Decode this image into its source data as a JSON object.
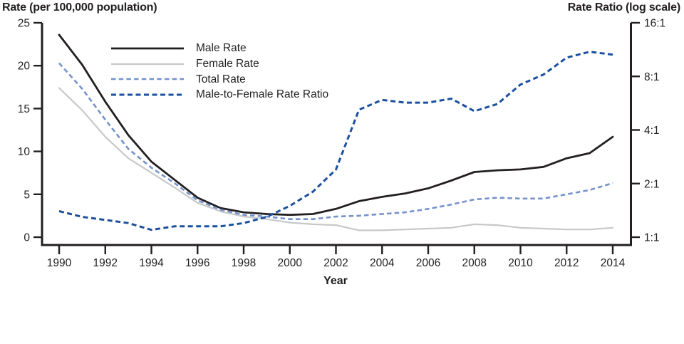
{
  "figure": {
    "background": "#ffffff",
    "text_color": "#231f20"
  },
  "chart_data": {
    "type": "line",
    "title": "",
    "xlabel": "Year",
    "grid": false,
    "legend_position": "top-left-inside",
    "x": [
      1990,
      1991,
      1992,
      1993,
      1994,
      1995,
      1996,
      1997,
      1998,
      1999,
      2000,
      2001,
      2002,
      2003,
      2004,
      2005,
      2006,
      2007,
      2008,
      2009,
      2010,
      2011,
      2012,
      2013,
      2014
    ],
    "x_tick_labels": [
      "1990",
      "1992",
      "1994",
      "1996",
      "1998",
      "2000",
      "2002",
      "2004",
      "2006",
      "2008",
      "2010",
      "2012",
      "2014"
    ],
    "x_tick_values": [
      1990,
      1992,
      1994,
      1996,
      1998,
      2000,
      2002,
      2004,
      2006,
      2008,
      2010,
      2012,
      2014
    ],
    "left_axis": {
      "title": "Rate (per 100,000 population)",
      "range": [
        0,
        25
      ],
      "tick_values": [
        0,
        5,
        10,
        15,
        20,
        25
      ],
      "tick_labels": [
        "0",
        "5",
        "10",
        "15",
        "20",
        "25"
      ]
    },
    "right_axis": {
      "title": "Rate Ratio (log scale)",
      "scale": "log2",
      "range": [
        1,
        16
      ],
      "tick_values": [
        1,
        2,
        4,
        8,
        16
      ],
      "tick_labels": [
        "1:1",
        "2:1",
        "4:1",
        "8:1",
        "16:1"
      ]
    },
    "series": [
      {
        "name": "Male Rate",
        "axis": "left",
        "color": "#231f20",
        "dashed": false,
        "values": [
          23.6,
          20.1,
          15.8,
          11.9,
          8.8,
          6.7,
          4.6,
          3.4,
          2.9,
          2.7,
          2.6,
          2.7,
          3.3,
          4.2,
          4.7,
          5.1,
          5.7,
          6.6,
          7.6,
          7.8,
          7.9,
          8.2,
          9.2,
          9.8,
          11.7
        ]
      },
      {
        "name": "Female Rate",
        "axis": "left",
        "color": "#c7c8ca",
        "dashed": false,
        "values": [
          17.4,
          14.8,
          11.7,
          9.2,
          7.5,
          5.8,
          4.0,
          3.0,
          2.4,
          2.1,
          1.7,
          1.5,
          1.4,
          0.8,
          0.8,
          0.9,
          1.0,
          1.1,
          1.5,
          1.4,
          1.1,
          1.0,
          0.9,
          0.9,
          1.1
        ]
      },
      {
        "name": "Total Rate",
        "axis": "left",
        "color": "#7492cb",
        "dashed": true,
        "values": [
          20.3,
          17.3,
          13.7,
          10.3,
          8.1,
          6.3,
          4.3,
          3.2,
          2.6,
          2.4,
          2.1,
          2.1,
          2.4,
          2.5,
          2.7,
          2.9,
          3.3,
          3.8,
          4.4,
          4.6,
          4.5,
          4.5,
          5.0,
          5.5,
          6.3
        ]
      },
      {
        "name": "Male-to-Female Rate Ratio",
        "axis": "right",
        "color": "#1b509e",
        "dashed": true,
        "values": [
          1.4,
          1.3,
          1.25,
          1.2,
          1.1,
          1.15,
          1.15,
          1.15,
          1.2,
          1.3,
          1.5,
          1.8,
          2.4,
          5.2,
          5.9,
          5.7,
          5.7,
          6.0,
          5.1,
          5.6,
          7.2,
          8.2,
          10.2,
          11.0,
          10.6
        ]
      }
    ]
  }
}
